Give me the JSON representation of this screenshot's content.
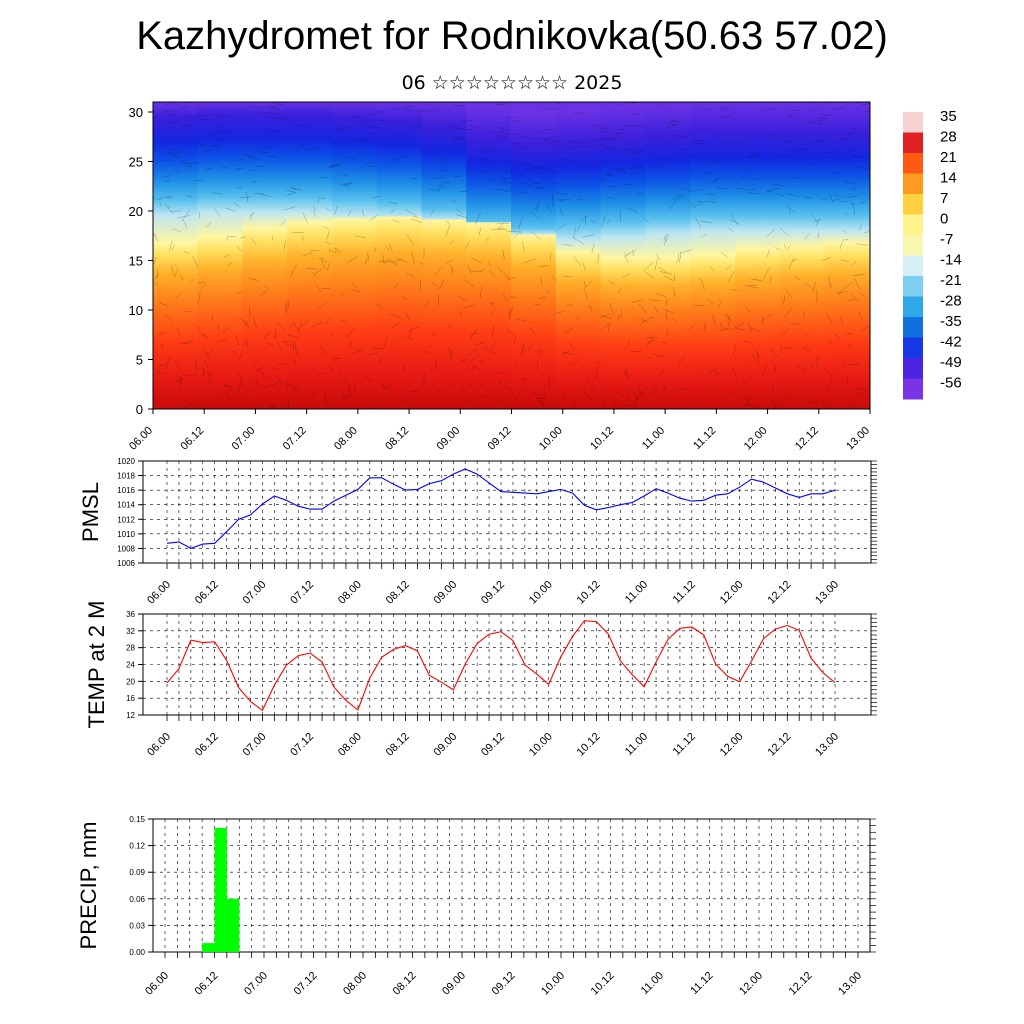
{
  "title": "Kazhydromet for Rodnikovka(50.63 57.02)",
  "subtitle": "06 ☆☆☆☆☆☆☆☆ 2025",
  "time_labels": [
    "06.00",
    "06.12",
    "07.00",
    "07.12",
    "08.00",
    "08.12",
    "09.00",
    "09.12",
    "10.00",
    "10.12",
    "11.00",
    "11.12",
    "12.00",
    "12.12",
    "13.00"
  ],
  "chart_data": [
    {
      "type": "heatmap",
      "title": "",
      "ylim": [
        0,
        30
      ],
      "y_ticks": [
        "0",
        "5",
        "10",
        "15",
        "20",
        "25",
        "30"
      ],
      "colorbar_labels": [
        "35",
        "28",
        "21",
        "14",
        "7",
        "0",
        "-7",
        "-14",
        "-21",
        "-28",
        "-35",
        "-42",
        "-49",
        "-56"
      ],
      "colorbar_colors": [
        "#f7d0d0",
        "#e02020",
        "#ff5a14",
        "#ff9a1e",
        "#ffd040",
        "#fff48c",
        "#f7f7b0",
        "#d6eef5",
        "#7fd0f0",
        "#30a8e8",
        "#1070e0",
        "#1838e8",
        "#4a24e0",
        "#7a34e8"
      ],
      "surface_temperature_level": [
        0.55,
        0.57,
        0.6,
        0.62,
        0.63,
        0.64,
        0.63,
        0.62,
        0.58,
        0.52,
        0.5,
        0.5,
        0.51,
        0.53,
        0.54,
        0.55
      ],
      "tropopause_level": [
        0.85,
        0.86,
        0.86,
        0.86,
        0.85,
        0.84,
        0.82,
        0.78,
        0.76,
        0.77,
        0.78,
        0.79,
        0.8,
        0.8,
        0.8,
        0.8
      ],
      "grid": false
    },
    {
      "type": "line",
      "ylabel": "PMSL",
      "ylim": [
        1006,
        1020
      ],
      "y_ticks": [
        "1006",
        "1008",
        "1010",
        "1012",
        "1014",
        "1016",
        "1018",
        "1020"
      ],
      "grid": true,
      "series": [
        {
          "color": "#0000ff",
          "values": [
            1008.7,
            1008.9,
            1008.0,
            1008.6,
            1008.7,
            1010.3,
            1012.0,
            1012.6,
            1014.1,
            1015.2,
            1014.6,
            1013.8,
            1013.4,
            1013.4,
            1014.5,
            1015.3,
            1016.1,
            1017.7,
            1017.7,
            1016.8,
            1016.0,
            1016.1,
            1016.9,
            1017.3,
            1018.2,
            1018.9,
            1018.2,
            1017.0,
            1015.8,
            1015.7,
            1015.6,
            1015.5,
            1015.8,
            1016.1,
            1015.6,
            1013.9,
            1013.3,
            1013.6,
            1014.0,
            1014.3,
            1015.2,
            1016.2,
            1015.6,
            1014.9,
            1014.5,
            1014.6,
            1015.3,
            1015.5,
            1016.4,
            1017.5,
            1017.1,
            1016.3,
            1015.5,
            1015.0,
            1015.5,
            1015.5,
            1016.0
          ]
        }
      ]
    },
    {
      "type": "line",
      "ylabel": "TEMP at 2 M",
      "ylim": [
        12,
        36
      ],
      "y_ticks": [
        "12",
        "16",
        "20",
        "24",
        "28",
        "32",
        "36"
      ],
      "grid": true,
      "series": [
        {
          "color": "#ff0000",
          "values": [
            19.6,
            23.0,
            29.8,
            29.2,
            29.4,
            25.0,
            18.5,
            15.2,
            13.1,
            19.1,
            23.8,
            26.1,
            26.7,
            24.6,
            18.6,
            15.5,
            13.2,
            20.8,
            25.7,
            27.6,
            28.5,
            27.2,
            21.4,
            19.8,
            18.0,
            24.1,
            29.0,
            31.2,
            31.8,
            29.7,
            23.9,
            21.7,
            19.3,
            25.7,
            30.7,
            34.4,
            34.2,
            31.2,
            24.9,
            21.6,
            18.7,
            24.6,
            30.0,
            32.6,
            32.9,
            31.0,
            24.1,
            21.2,
            19.9,
            24.8,
            30.1,
            32.4,
            33.3,
            32.1,
            25.5,
            22.0,
            19.7
          ]
        }
      ]
    },
    {
      "type": "bar",
      "ylabel": "PRECIP, mm",
      "ylim": [
        0,
        0.15
      ],
      "y_ticks": [
        "0.00",
        "0.03",
        "0.06",
        "0.09",
        "0.12",
        "0.15"
      ],
      "grid": true,
      "bar_color": "#00ff00",
      "values": [
        0,
        0,
        0,
        0.01,
        0.14,
        0.06,
        0,
        0,
        0,
        0,
        0,
        0,
        0,
        0,
        0,
        0,
        0,
        0,
        0,
        0,
        0,
        0,
        0,
        0,
        0,
        0,
        0,
        0,
        0,
        0,
        0,
        0,
        0,
        0,
        0,
        0,
        0,
        0,
        0,
        0,
        0,
        0,
        0,
        0,
        0,
        0,
        0,
        0,
        0,
        0,
        0,
        0,
        0,
        0,
        0,
        0
      ]
    }
  ]
}
